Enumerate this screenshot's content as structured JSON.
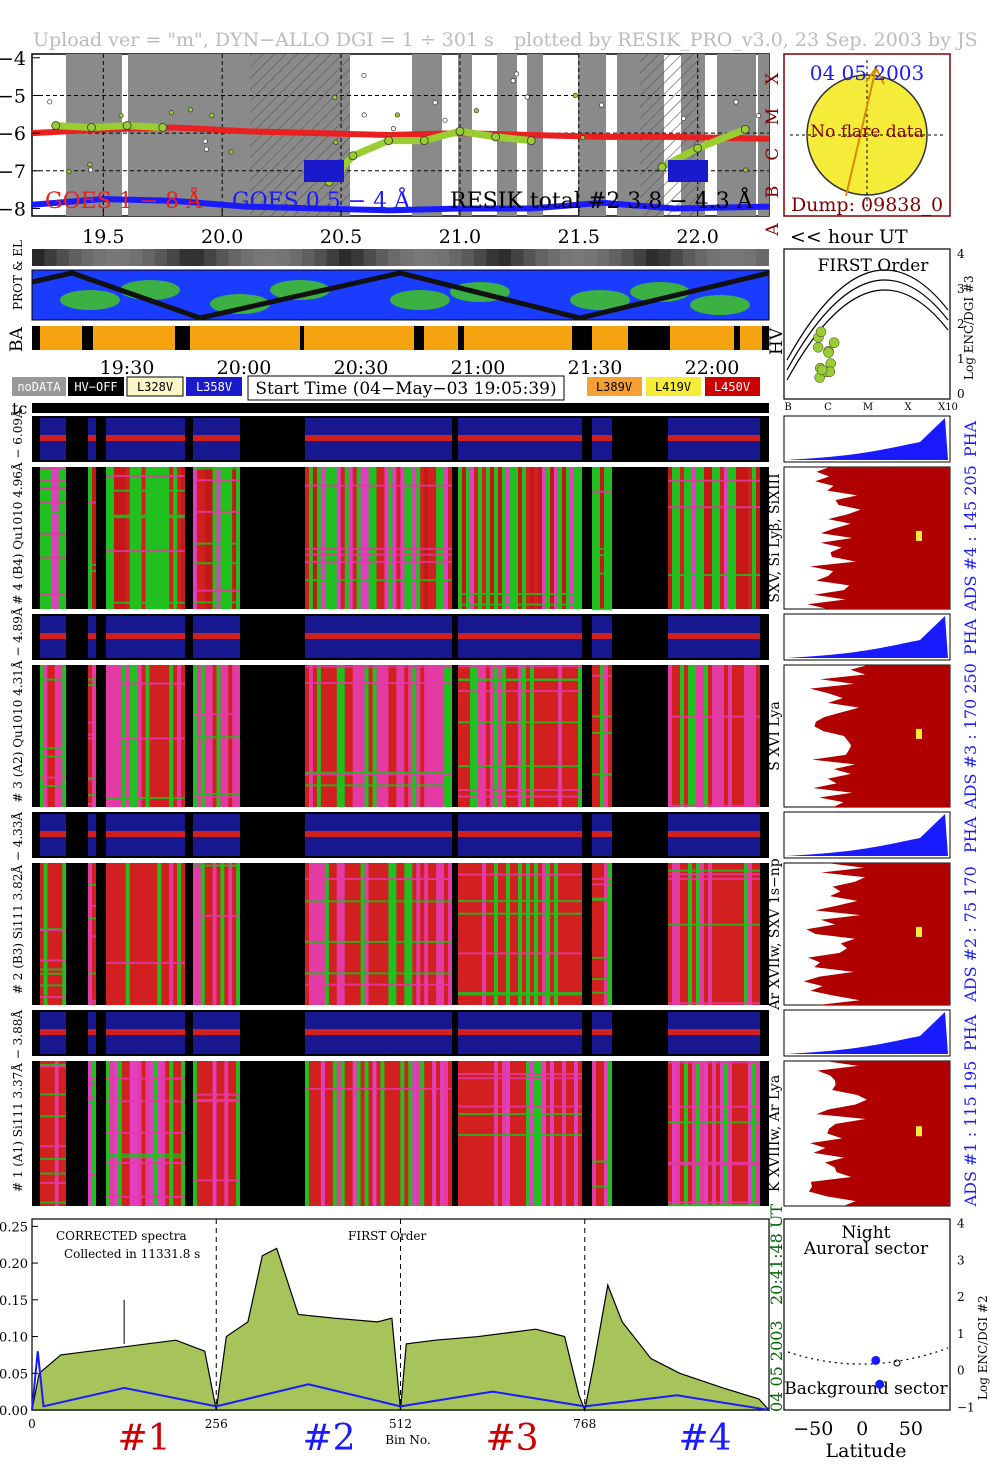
{
  "header": {
    "upload": "Upload ver = \"m\", DYN−ALLO DGI =   1 ÷ 301 s",
    "plotted": "plotted by RESIK_PRO_v3.0, 23 Sep. 2003 by JS"
  },
  "goes": {
    "yticks": [
      "−4",
      "−5",
      "−6",
      "−7",
      "−8"
    ],
    "classes": [
      "X",
      "M",
      "C",
      "B",
      "A"
    ],
    "label_long": "GOES 1 − 8 Å",
    "label_short": "GOES 0.5 − 4 Å",
    "label_resik": "RESIK total #2  3.8 − 4.3 Å",
    "xticks": [
      "19.5",
      "20.0",
      "20.5",
      "21.0",
      "21.5",
      "22.0"
    ],
    "hour_label": "<< hour UT",
    "colors": {
      "long": "#e82020",
      "short": "#1a1aff",
      "resik": "#9acd32"
    }
  },
  "sun": {
    "date": "04 05 2003",
    "message": "No flare data",
    "dump": "Dump: 09838_0"
  },
  "orbit": {
    "labels": [
      "PROT & EL",
      "BA",
      "HV"
    ],
    "time_ticks": [
      "19:30",
      "20:00",
      "20:30",
      "21:00",
      "21:30",
      "22:00"
    ]
  },
  "legend": {
    "items": [
      "noDATA",
      "HV−OFF",
      "L328V",
      "L358V"
    ],
    "start_time": "Start Time (04−May−03 19:05:39)",
    "items_right": [
      "L389V",
      "L419V",
      "L450V"
    ]
  },
  "first_order": {
    "title": "FIRST Order",
    "ylabel": "Log ENC/DGI #3",
    "yticks": [
      "4",
      "3",
      "2",
      "1",
      "0"
    ],
    "xticks": [
      "B",
      "C",
      "M",
      "X",
      "X10"
    ]
  },
  "spectro": {
    "tc": "tc",
    "channels": [
      {
        "pha_label": "# 4 (B4) Qu1010 4.96Å − 6.09Å",
        "lines": "SXV, Si Lyβ, SiXIII",
        "ads": "ADS #4 :  145 205",
        "pha": "PHA"
      },
      {
        "pha_label": "# 3 (A2) Qu1010  4.31Å − 4.89Å",
        "lines": "S XVI Lya",
        "ads": "ADS #3 :  170 250",
        "pha": "PHA"
      },
      {
        "pha_label": "# 2 (B3) Si111  3.82Å − 4.33Å",
        "lines": "Ar XVIIw, SXV 1s−np",
        "ads": "ADS #2 :  75 170",
        "pha": "PHA"
      },
      {
        "pha_label": "# 1 (A1) Si111  3.37Å − 3.88Å",
        "lines": "K XVIIIw, Ar Lya",
        "ads": "ADS #1 :  115 195",
        "pha": "PHA"
      }
    ]
  },
  "spectrum": {
    "text1": "CORRECTED spectra",
    "text2": "Collected in 11331.8 s",
    "text3": "FIRST Order",
    "yticks": [
      "0.25",
      "0.20",
      "0.15",
      "0.10",
      "0.05",
      "0.00"
    ],
    "xticks": [
      "0",
      "256",
      "512",
      "768"
    ],
    "xlabel": "Bin No.",
    "channels": [
      "#1",
      "#2",
      "#3",
      "#4"
    ],
    "date": "04 05 2003",
    "time": "20:41:48 UT"
  },
  "latitude": {
    "night": "Night",
    "auroral": "Auroral sector",
    "background": "Background sector",
    "xlabel": "Latitude",
    "xticks": [
      "−50",
      "0",
      "50"
    ],
    "ylabel": "Log ENC/DGI #2",
    "yticks": [
      "4",
      "3",
      "2",
      "1",
      "0",
      "−1"
    ]
  },
  "chart_data": [
    {
      "type": "line",
      "title": "",
      "xlabel": "<< hour UT",
      "ylabel": "",
      "x_range": [
        19.2,
        22.3
      ],
      "ylim": [
        -8.2,
        -3.9
      ],
      "series": [
        {
          "name": "GOES 1 − 8 Å",
          "x": [
            19.2,
            19.5,
            19.8,
            20.1,
            20.4,
            20.7,
            21.0,
            21.3,
            21.6,
            21.9,
            22.3
          ],
          "values": [
            -6.0,
            -5.9,
            -5.85,
            -5.95,
            -6.0,
            -6.05,
            -6.0,
            -6.05,
            -6.1,
            -6.1,
            -6.15
          ]
        },
        {
          "name": "GOES 0.5 − 4 Å",
          "x": [
            19.2,
            19.5,
            19.8,
            20.1,
            20.4,
            20.7,
            21.0,
            21.3,
            21.6,
            21.9,
            22.3
          ],
          "values": [
            -7.9,
            -7.75,
            -7.8,
            -7.95,
            -8.0,
            -8.05,
            -8.0,
            -8.0,
            -7.85,
            -8.0,
            -7.95
          ]
        },
        {
          "name": "RESIK total #2  3.8 − 4.3 Å",
          "x": [
            19.3,
            19.45,
            19.6,
            19.75,
            20.45,
            20.55,
            20.7,
            20.85,
            21.0,
            21.15,
            21.3,
            21.85,
            22.0,
            22.2
          ],
          "values": [
            -5.8,
            -5.85,
            -5.8,
            -5.85,
            -7.3,
            -6.6,
            -6.2,
            -6.2,
            -5.95,
            -6.1,
            -6.2,
            -6.9,
            -6.4,
            -5.9
          ]
        }
      ]
    },
    {
      "type": "area",
      "title": "",
      "xlabel": "Bin No.",
      "ylabel": "",
      "xlim": [
        0,
        1024
      ],
      "ylim": [
        0,
        0.26
      ],
      "series": [
        {
          "name": "CORRECTED spectra",
          "x": [
            0,
            10,
            40,
            120,
            200,
            240,
            256,
            270,
            300,
            320,
            340,
            370,
            420,
            480,
            500,
            512,
            520,
            560,
            620,
            700,
            740,
            760,
            768,
            780,
            800,
            820,
            860,
            900,
            960,
            1010,
            1024
          ],
          "values": [
            0,
            0.05,
            0.075,
            0.085,
            0.095,
            0.08,
            0,
            0.1,
            0.12,
            0.21,
            0.22,
            0.13,
            0.125,
            0.12,
            0.125,
            0,
            0.09,
            0.095,
            0.1,
            0.11,
            0.1,
            0.02,
            0,
            0.06,
            0.17,
            0.12,
            0.07,
            0.05,
            0.03,
            0.015,
            0
          ]
        },
        {
          "name": "",
          "x": [
            0,
            8,
            16,
            128,
            256,
            384,
            512,
            640,
            768,
            896,
            1024
          ],
          "values": [
            0,
            0.08,
            0.005,
            0.03,
            0.005,
            0.035,
            0.005,
            0.025,
            0.005,
            0.02,
            0
          ]
        }
      ]
    },
    {
      "type": "scatter",
      "title": "",
      "xlabel": "Latitude",
      "ylabel": "Log ENC/DGI #2",
      "xlim": [
        -80,
        90
      ],
      "ylim": [
        -1.1,
        4.1
      ],
      "series": [
        {
          "name": "",
          "x": [
            14,
            18
          ],
          "values": [
            0.25,
            -0.4
          ]
        }
      ]
    }
  ]
}
